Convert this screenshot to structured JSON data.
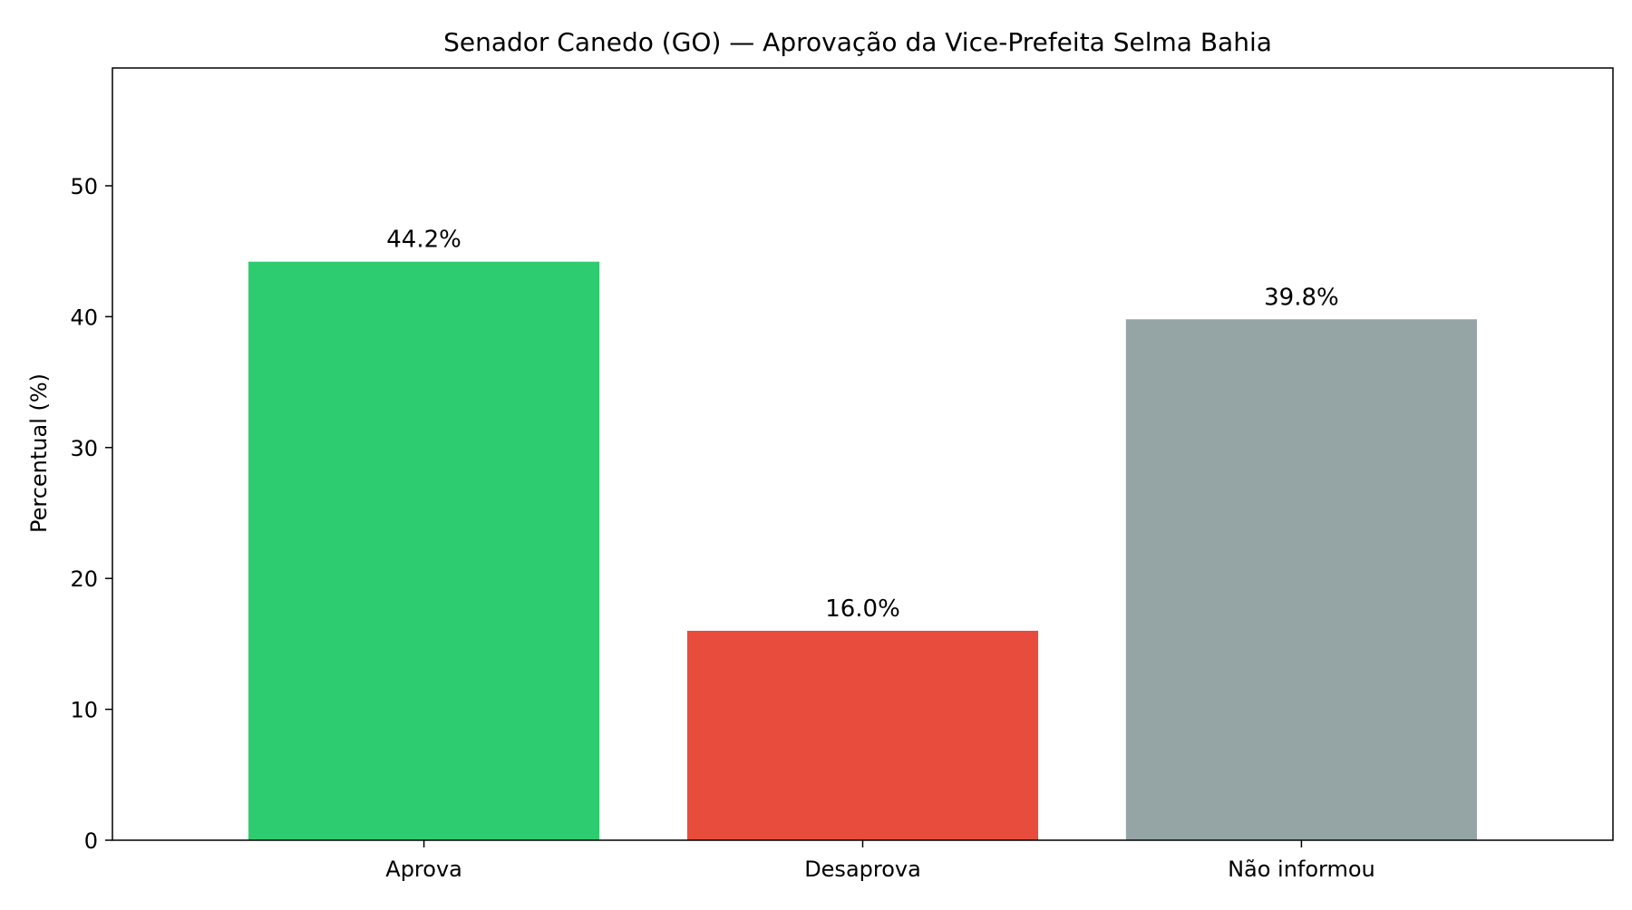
{
  "chart_data": {
    "type": "bar",
    "title": "Senador Canedo (GO) — Aprovação da Vice-Prefeita Selma Bahia",
    "xlabel": "",
    "ylabel": "Percentual (%)",
    "categories": [
      "Aprova",
      "Desaprova",
      "Não informou"
    ],
    "values": [
      44.2,
      16.0,
      39.8
    ],
    "value_labels": [
      "44.2%",
      "16.0%",
      "39.8%"
    ],
    "colors": [
      "#2ecc71",
      "#e74c3c",
      "#95a5a6"
    ],
    "ylim": [
      0,
      59
    ],
    "yticks": [
      0,
      10,
      20,
      30,
      40,
      50
    ],
    "ytick_labels": [
      "0",
      "10",
      "20",
      "30",
      "40",
      "50"
    ],
    "grid": false,
    "legend": "none"
  }
}
